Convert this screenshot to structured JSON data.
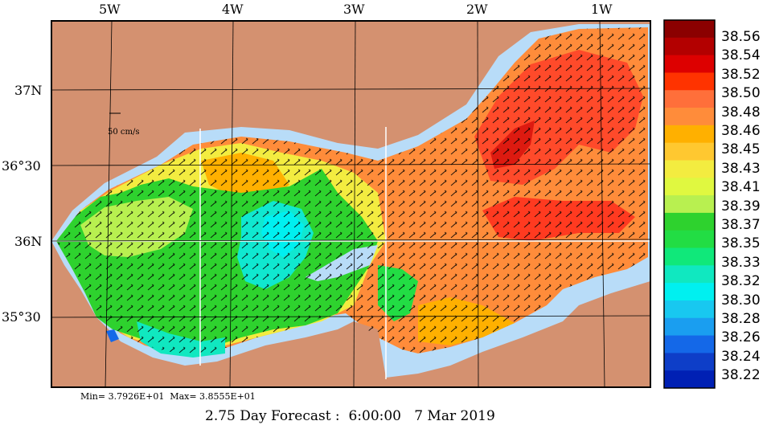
{
  "map": {
    "longitude_labels": [
      "5W",
      "4W",
      "3W",
      "2W",
      "1W"
    ],
    "latitude_labels": [
      "37N",
      "36°30",
      "36N",
      "35°30"
    ],
    "scale_label": "50 cm/s"
  },
  "legend": {
    "values": [
      "38.56",
      "38.54",
      "38.52",
      "38.50",
      "38.48",
      "38.46",
      "38.45",
      "38.43",
      "38.41",
      "38.39",
      "38.37",
      "38.35",
      "38.33",
      "38.32",
      "38.30",
      "38.28",
      "38.26",
      "38.24",
      "38.22"
    ],
    "colors": [
      "#8b0000",
      "#b30000",
      "#dd0000",
      "#ff3300",
      "#ff6f3a",
      "#ff8c3a",
      "#ffb000",
      "#ffc830",
      "#f3ec40",
      "#e0f840",
      "#b8f050",
      "#2ed22e",
      "#22dd44",
      "#10e87a",
      "#10e8c0",
      "#00f0f0",
      "#18c8f0",
      "#1a9ef0",
      "#1468e8",
      "#0e3ec8",
      "#0020b4"
    ]
  },
  "footer": {
    "minmax": "Min= 3.7926E+01  Max= 3.8555E+01",
    "forecast": "2.75 Day Forecast :  6:00:00   7 Mar 2019"
  },
  "colors": {
    "land": "#d49170",
    "shelf": "#b8dcf8",
    "sea_warm": "#ff8c3a",
    "sea_hot": "#ff4a2a",
    "sea_yellow": "#f3ec40",
    "sea_green": "#22c82a",
    "sea_cyan": "#10e8d0"
  }
}
